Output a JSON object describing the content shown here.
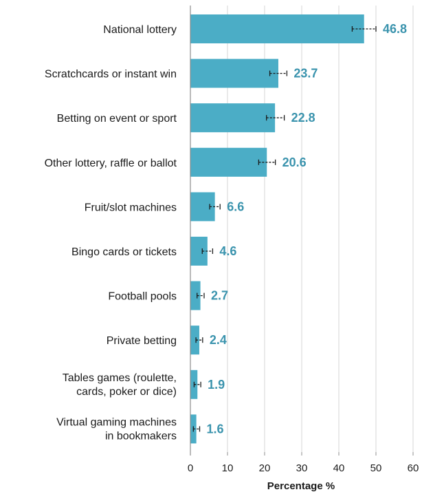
{
  "chart_data": {
    "type": "bar",
    "orientation": "horizontal",
    "categories": [
      [
        "National lottery"
      ],
      [
        "Scratchcards or instant win"
      ],
      [
        "Betting on event or sport"
      ],
      [
        "Other lottery, raffle or ballot"
      ],
      [
        "Fruit/slot machines"
      ],
      [
        "Bingo cards or tickets"
      ],
      [
        "Football pools"
      ],
      [
        "Private betting"
      ],
      [
        "Tables games (roulette,",
        "cards, poker or dice)"
      ],
      [
        "Virtual gaming machines",
        "in bookmakers"
      ]
    ],
    "values": [
      46.8,
      23.7,
      22.8,
      20.6,
      6.6,
      4.6,
      2.7,
      2.4,
      1.9,
      1.6
    ],
    "value_labels": [
      "46.8",
      "23.7",
      "22.8",
      "20.6",
      "6.6",
      "4.6",
      "2.7",
      "2.4",
      "1.9",
      "1.6"
    ],
    "error_low": [
      43.6,
      21.4,
      20.5,
      18.4,
      5.2,
      3.2,
      1.8,
      1.5,
      1.0,
      0.8
    ],
    "error_high": [
      50.0,
      26.0,
      25.3,
      22.9,
      8.0,
      6.0,
      3.7,
      3.3,
      2.8,
      2.5
    ],
    "xlabel": "Percentage %",
    "xlim": [
      0,
      60
    ],
    "xticks": [
      0,
      10,
      20,
      30,
      40,
      50,
      60
    ],
    "grid": true,
    "colors": {
      "bar": "#4badc6",
      "value_label": "#3a93ad",
      "grid": "#d4d4d4",
      "axis": "#8c8c8c",
      "error": "#1a1a1a"
    }
  }
}
